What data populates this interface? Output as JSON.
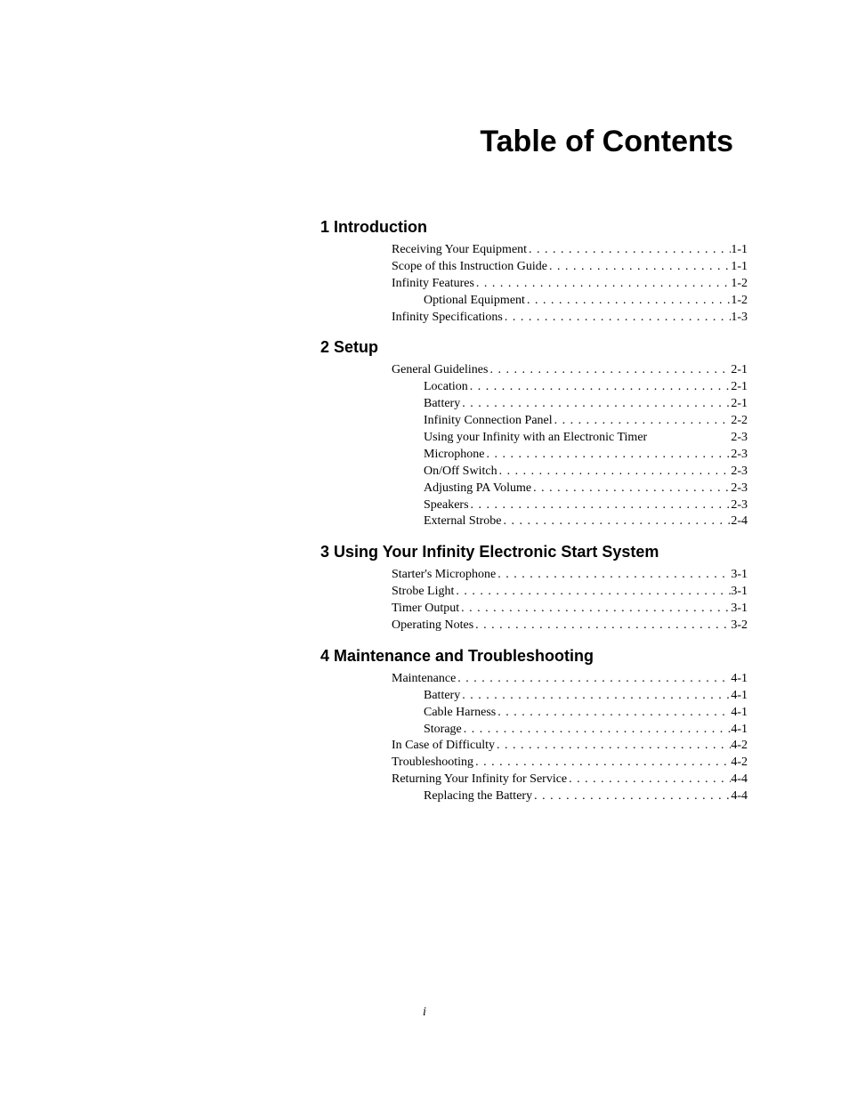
{
  "title": "Table of Contents",
  "footer": "i",
  "chapters": [
    {
      "heading": "1 Introduction",
      "entries": [
        {
          "label": "Receiving Your Equipment",
          "page": "1-1",
          "indent": 0,
          "dots": true
        },
        {
          "label": "Scope of this Instruction Guide",
          "page": "1-1",
          "indent": 0,
          "dots": true
        },
        {
          "label": "Infinity Features",
          "page": "1-2",
          "indent": 0,
          "dots": true
        },
        {
          "label": "Optional Equipment",
          "page": "1-2",
          "indent": 1,
          "dots": true
        },
        {
          "label": "Infinity Specifications",
          "page": "1-3",
          "indent": 0,
          "dots": true
        }
      ]
    },
    {
      "heading": "2 Setup",
      "entries": [
        {
          "label": "General Guidelines",
          "page": "2-1",
          "indent": 0,
          "dots": true
        },
        {
          "label": "Location",
          "page": "2-1",
          "indent": 1,
          "dots": true
        },
        {
          "label": "Battery",
          "page": "2-1",
          "indent": 1,
          "dots": true
        },
        {
          "label": "Infinity Connection Panel",
          "page": "2-2",
          "indent": 1,
          "dots": true
        },
        {
          "label": "Using your Infinity with an Electronic Timer",
          "page": "2-3",
          "indent": 1,
          "dots": false
        },
        {
          "label": "Microphone",
          "page": "2-3",
          "indent": 1,
          "dots": true
        },
        {
          "label": "On/Off Switch",
          "page": "2-3",
          "indent": 1,
          "dots": true
        },
        {
          "label": "Adjusting PA Volume",
          "page": "2-3",
          "indent": 1,
          "dots": true
        },
        {
          "label": "Speakers",
          "page": "2-3",
          "indent": 1,
          "dots": true
        },
        {
          "label": "External Strobe",
          "page": "2-4",
          "indent": 1,
          "dots": true
        }
      ]
    },
    {
      "heading": "3 Using Your Infinity Electronic Start System",
      "entries": [
        {
          "label": "Starter's Microphone",
          "page": "3-1",
          "indent": 0,
          "dots": true
        },
        {
          "label": "Strobe Light",
          "page": "3-1",
          "indent": 0,
          "dots": true
        },
        {
          "label": "Timer Output",
          "page": "3-1",
          "indent": 0,
          "dots": true
        },
        {
          "label": "Operating Notes",
          "page": "3-2",
          "indent": 0,
          "dots": true
        }
      ]
    },
    {
      "heading": "4 Maintenance and Troubleshooting",
      "entries": [
        {
          "label": "Maintenance",
          "page": "4-1",
          "indent": 0,
          "dots": true
        },
        {
          "label": "Battery",
          "page": "4-1",
          "indent": 1,
          "dots": true
        },
        {
          "label": "Cable Harness",
          "page": "4-1",
          "indent": 1,
          "dots": true
        },
        {
          "label": "Storage",
          "page": "4-1",
          "indent": 1,
          "dots": true
        },
        {
          "label": "In Case of Difficulty",
          "page": "4-2",
          "indent": 0,
          "dots": true
        },
        {
          "label": "Troubleshooting",
          "page": "4-2",
          "indent": 0,
          "dots": true
        },
        {
          "label": "Returning Your Infinity for Service",
          "page": "4-4",
          "indent": 0,
          "dots": true
        },
        {
          "label": "Replacing the Battery",
          "page": "4-4",
          "indent": 1,
          "dots": true
        }
      ]
    }
  ]
}
